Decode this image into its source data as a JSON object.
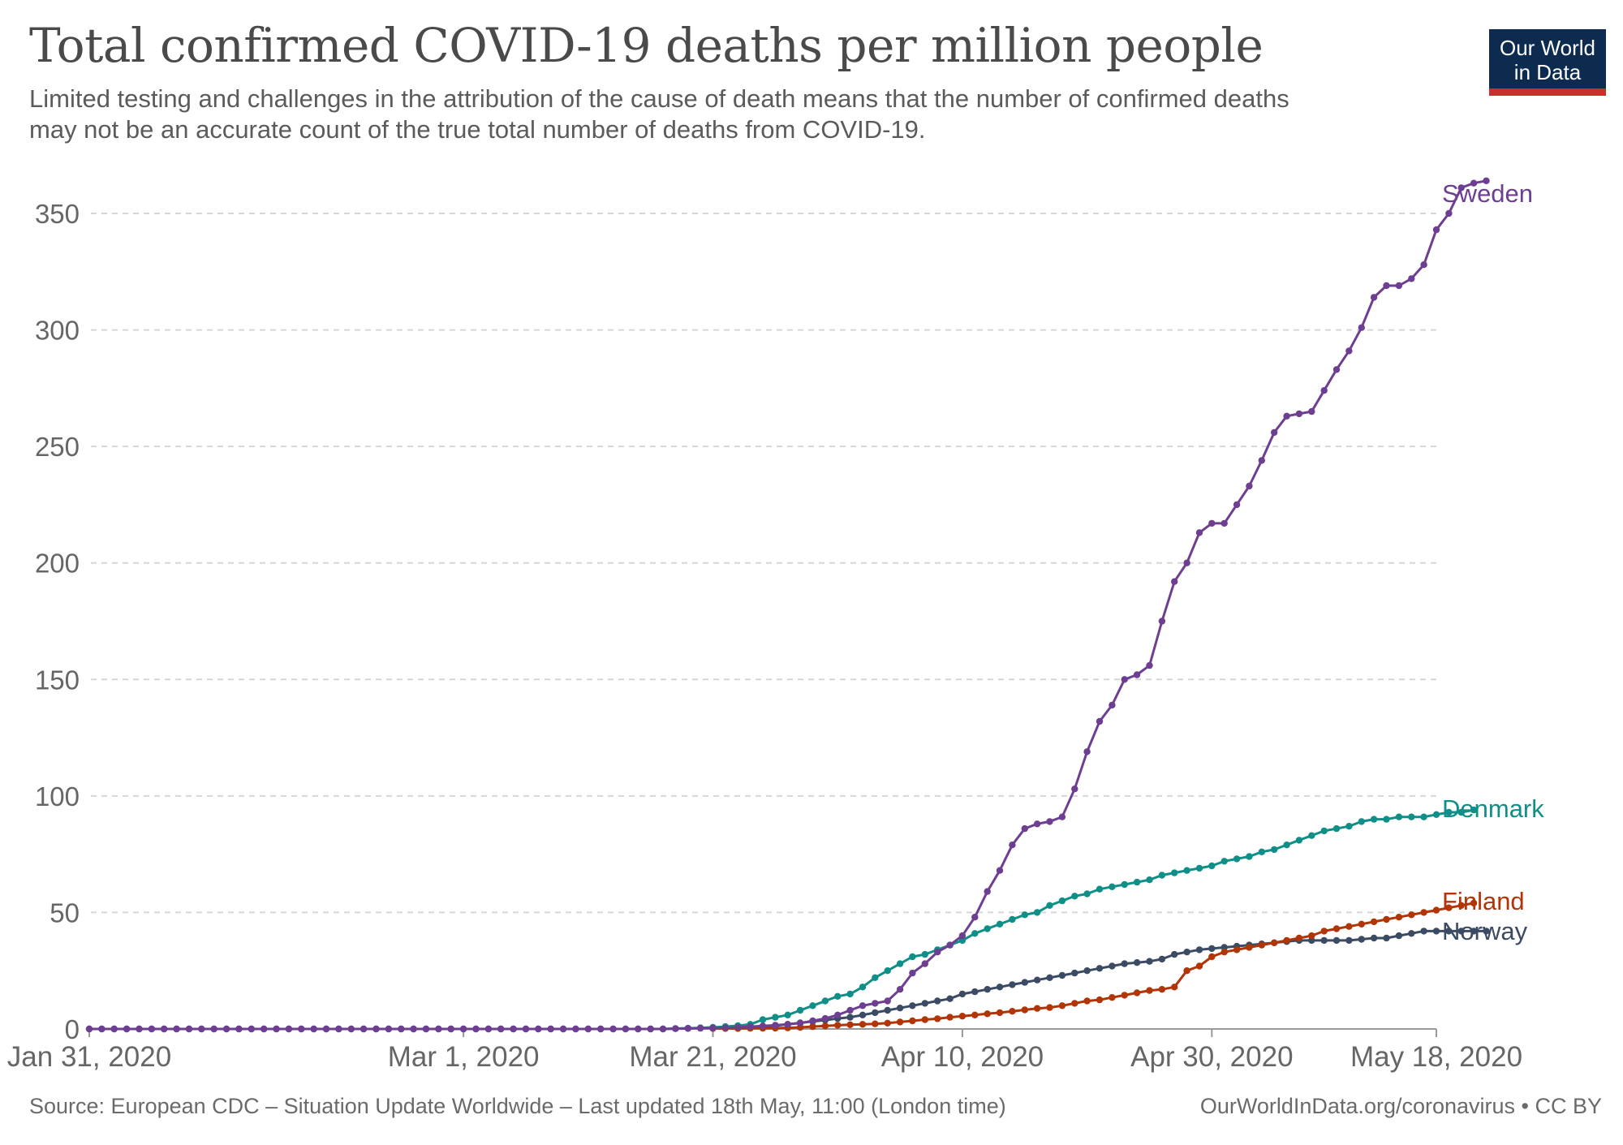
{
  "header": {
    "title": "Total confirmed COVID-19 deaths per million people",
    "subtitle_line1": "Limited testing and challenges in the attribution of the cause of death means that the number of confirmed deaths",
    "subtitle_line2": "may not be an accurate count of the true total number of deaths from COVID-19.",
    "logo_line1": "Our World",
    "logo_line2": "in Data"
  },
  "footer": {
    "source": "Source: European CDC – Situation Update Worldwide – Last updated 18th May, 11:00 (London time)",
    "url": "OurWorldInData.org/coronavirus • CC BY"
  },
  "chart_data": {
    "type": "line",
    "title": "Total confirmed COVID-19 deaths per million people",
    "xlabel": "",
    "ylabel": "",
    "x_range": [
      "2020-01-31",
      "2020-05-18"
    ],
    "ylim": [
      0,
      365
    ],
    "y_ticks": [
      0,
      50,
      100,
      150,
      200,
      250,
      300,
      350
    ],
    "x_ticks": [
      {
        "date": "2020-01-31",
        "label": "Jan 31, 2020"
      },
      {
        "date": "2020-03-01",
        "label": "Mar 1, 2020"
      },
      {
        "date": "2020-03-21",
        "label": "Mar 21, 2020"
      },
      {
        "date": "2020-04-10",
        "label": "Apr 10, 2020"
      },
      {
        "date": "2020-04-30",
        "label": "Apr 30, 2020"
      },
      {
        "date": "2020-05-18",
        "label": "May 18, 2020"
      }
    ],
    "grid": true,
    "legend": "line-end labels",
    "series": [
      {
        "name": "Sweden",
        "color": "#6d3e91",
        "start_date": "2020-01-31",
        "values": [
          0,
          0,
          0,
          0,
          0,
          0,
          0,
          0,
          0,
          0,
          0,
          0,
          0,
          0,
          0,
          0,
          0,
          0,
          0,
          0,
          0,
          0,
          0,
          0,
          0,
          0,
          0,
          0,
          0,
          0,
          0,
          0,
          0,
          0,
          0,
          0,
          0,
          0,
          0,
          0,
          0,
          0,
          0,
          0,
          0,
          0,
          0,
          0.1,
          0.2,
          0.3,
          0.4,
          0.5,
          0.7,
          1,
          1.3,
          1.6,
          2,
          2.5,
          3.5,
          4.5,
          6,
          8,
          10,
          11,
          12,
          17,
          24,
          28,
          33,
          36,
          40,
          48,
          59,
          68,
          79,
          86,
          88,
          89,
          91,
          103,
          119,
          132,
          139,
          150,
          152,
          156,
          175,
          192,
          200,
          213,
          217,
          217,
          225,
          233,
          244,
          256,
          263,
          264,
          265,
          274,
          283,
          291,
          301,
          314,
          319,
          319,
          322,
          328,
          343,
          350,
          361,
          363,
          364
        ]
      },
      {
        "name": "Denmark",
        "color": "#0f8f87",
        "start_date": "2020-01-31",
        "values": [
          0,
          0,
          0,
          0,
          0,
          0,
          0,
          0,
          0,
          0,
          0,
          0,
          0,
          0,
          0,
          0,
          0,
          0,
          0,
          0,
          0,
          0,
          0,
          0,
          0,
          0,
          0,
          0,
          0,
          0,
          0,
          0,
          0,
          0,
          0,
          0,
          0,
          0,
          0,
          0,
          0,
          0,
          0,
          0,
          0,
          0,
          0,
          0.2,
          0.3,
          0.5,
          0.7,
          1,
          1.4,
          2,
          4,
          5,
          6,
          8,
          10,
          12,
          14,
          15,
          18,
          22,
          25,
          28,
          31,
          32,
          34,
          36,
          38,
          41,
          43,
          45,
          47,
          49,
          50,
          53,
          55,
          57,
          58,
          60,
          61,
          62,
          63,
          64,
          66,
          67,
          68,
          69,
          70,
          72,
          73,
          74,
          76,
          77,
          79,
          81,
          83,
          85,
          86,
          87,
          89,
          90,
          90,
          91,
          91,
          91,
          92,
          93,
          93,
          94
        ]
      },
      {
        "name": "Finland",
        "color": "#b13507",
        "start_date": "2020-03-21",
        "values": [
          0.2,
          0.2,
          0.2,
          0.3,
          0.3,
          0.4,
          0.5,
          0.7,
          1,
          1.3,
          1.6,
          1.8,
          2,
          2.2,
          2.5,
          3,
          3.5,
          4,
          4.4,
          5,
          5.5,
          6,
          6.5,
          7,
          7.6,
          8.2,
          8.8,
          9.2,
          10,
          11,
          12,
          12.5,
          13.5,
          14.5,
          15.5,
          16.5,
          17,
          18,
          25,
          27,
          31,
          33,
          34,
          35,
          36,
          37,
          38,
          39,
          40,
          42,
          43,
          44,
          45,
          46,
          47,
          48,
          49,
          50,
          51,
          52,
          53,
          54
        ]
      },
      {
        "name": "Norway",
        "color": "#3b4b63",
        "start_date": "2020-03-21",
        "values": [
          0.3,
          0.4,
          0.5,
          0.7,
          1,
          1.4,
          2,
          2.6,
          3.2,
          3.8,
          4.5,
          5,
          6,
          7,
          8,
          9,
          10,
          11,
          12,
          13,
          15,
          16,
          17,
          18,
          19,
          20,
          21,
          22,
          23,
          24,
          25,
          26,
          27,
          28,
          28.5,
          29,
          30,
          32,
          33,
          34,
          34.5,
          35,
          35.5,
          36,
          36.5,
          37,
          37.5,
          38,
          38,
          38,
          38,
          38,
          38.5,
          39,
          39,
          40,
          41,
          42,
          42,
          42,
          42,
          42,
          42
        ]
      }
    ]
  }
}
